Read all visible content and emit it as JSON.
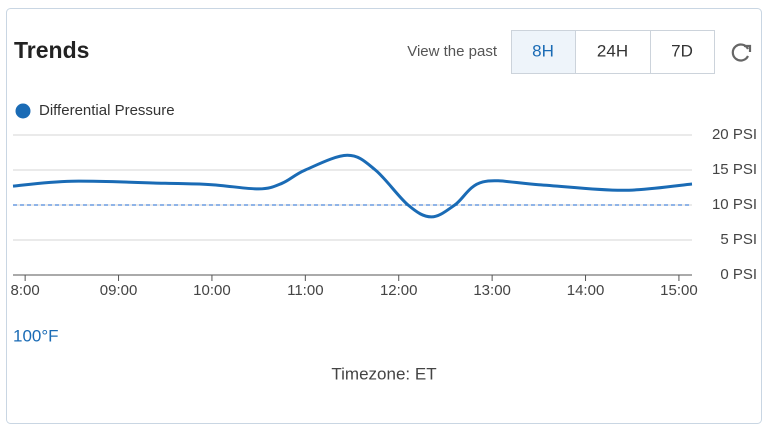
{
  "header": {
    "title": "Trends",
    "range_prompt": "View the past",
    "range_buttons": [
      "8H",
      "24H",
      "7D"
    ],
    "active_range": 0
  },
  "chart_data": {
    "type": "line",
    "x": [
      7.87,
      8.5,
      9.5,
      10,
      10.5,
      10.75,
      11,
      11.45,
      11.75,
      12.1,
      12.35,
      12.6,
      12.9,
      13.5,
      14.4,
      15.14
    ],
    "series": [
      {
        "name": "Differential Pressure",
        "color": "#1a6bb5",
        "values": [
          12.7,
          13.4,
          13.1,
          12.9,
          12.3,
          13.1,
          15,
          17.1,
          15,
          10,
          8.3,
          10,
          13.3,
          12.9,
          12.1,
          13
        ]
      }
    ],
    "threshold": 10,
    "threshold_color": "#8fb4e8",
    "xlim": [
      7.87,
      15.14
    ],
    "xticks": [
      {
        "value": 8,
        "label": "8:00"
      },
      {
        "value": 9,
        "label": "09:00"
      },
      {
        "value": 10,
        "label": "10:00"
      },
      {
        "value": 11,
        "label": "11:00"
      },
      {
        "value": 12,
        "label": "12:00"
      },
      {
        "value": 13,
        "label": "13:00"
      },
      {
        "value": 14,
        "label": "14:00"
      },
      {
        "value": 15,
        "label": "15:00"
      }
    ],
    "ylim": [
      0,
      20
    ],
    "yticks": [
      {
        "value": 0,
        "label": "0 PSI"
      },
      {
        "value": 5,
        "label": "5 PSI"
      },
      {
        "value": 10,
        "label": "10 PSI"
      },
      {
        "value": 15,
        "label": "15 PSI"
      },
      {
        "value": 20,
        "label": "20 PSI"
      }
    ],
    "grid": true
  },
  "footer": {
    "temperature": "100°F",
    "timezone": "Timezone: ET"
  }
}
